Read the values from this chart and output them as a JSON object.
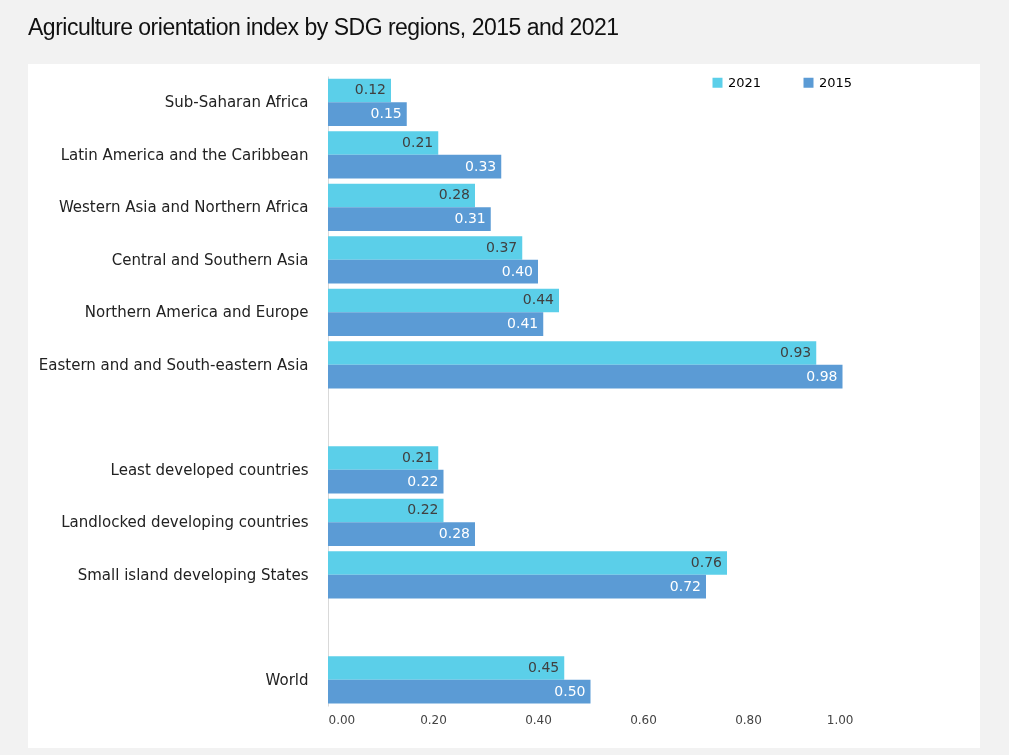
{
  "chart_data": {
    "type": "bar",
    "orientation": "horizontal",
    "title": "Agriculture orientation index by SDG regions, 2015 and 2021",
    "categories": [
      "Sub-Saharan Africa",
      "Latin America and the Caribbean",
      "Western Asia and Northern Africa",
      "Central and Southern Asia",
      "Northern America and Europe",
      "Eastern and and South-eastern Asia",
      null,
      "Least developed countries",
      "Landlocked developing countries",
      "Small island developing States",
      null,
      "World"
    ],
    "series": [
      {
        "name": "2021",
        "color": "#5bcfe9",
        "values": [
          0.12,
          0.21,
          0.28,
          0.37,
          0.44,
          0.93,
          null,
          0.21,
          0.22,
          0.76,
          null,
          0.45
        ],
        "value_labels": [
          "0.12",
          "0.21",
          "0.28",
          "0.37",
          "0.44",
          "0.93",
          null,
          "0.21",
          "0.22",
          "0.76",
          null,
          "0.45"
        ]
      },
      {
        "name": "2015",
        "color": "#5b9bd5",
        "values": [
          0.15,
          0.33,
          0.31,
          0.4,
          0.41,
          0.98,
          null,
          0.22,
          0.28,
          0.72,
          null,
          0.5
        ],
        "value_labels": [
          "0.15",
          "0.33",
          "0.31",
          "0.40",
          "0.41",
          "0.98",
          null,
          "0.22",
          "0.28",
          "0.72",
          null,
          "0.50"
        ]
      }
    ],
    "xlim": [
      0,
      1
    ],
    "xticks": [
      {
        "value": 0,
        "label": "0.00"
      },
      {
        "value": 0.2,
        "label": "0.20"
      },
      {
        "value": 0.4,
        "label": "0.40"
      },
      {
        "value": 0.6,
        "label": "0.60"
      },
      {
        "value": 0.8,
        "label": "0.80"
      },
      {
        "value": 1,
        "label": "1.00"
      }
    ],
    "legend": "top right",
    "grid": false
  }
}
